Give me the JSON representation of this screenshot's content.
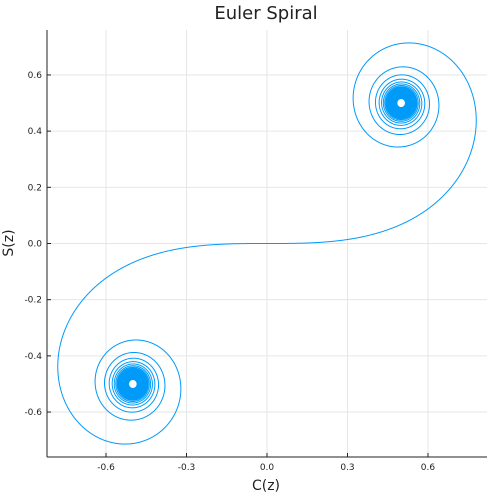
{
  "chart_data": {
    "type": "line",
    "title": "Euler Spiral",
    "xlabel": "C(z)",
    "ylabel": "S(z)",
    "xlim": [
      -0.82,
      0.82
    ],
    "ylim": [
      -0.76,
      0.76
    ],
    "xticks": [
      -0.6,
      -0.3,
      0.0,
      0.3,
      0.6
    ],
    "xtick_labels": [
      "-0.6",
      "-0.3",
      "0.0",
      "0.3",
      "0.6"
    ],
    "yticks": [
      -0.6,
      -0.4,
      -0.2,
      0.0,
      0.2,
      0.4,
      0.6
    ],
    "ytick_labels": [
      "-0.6",
      "-0.4",
      "-0.2",
      "0.0",
      "0.2",
      "0.4",
      "0.6"
    ],
    "grid": true,
    "legend": "none",
    "series": [
      {
        "function": "Fresnel integrals C(z)=∫cos(πt²/2)dt, S(z)=∫sin(πt²/2)dt",
        "z_range": [
          -20,
          20
        ],
        "color": "#009af9",
        "asymptotes": [
          [
            0.5,
            0.5
          ],
          [
            -0.5,
            -0.5
          ]
        ]
      }
    ]
  }
}
